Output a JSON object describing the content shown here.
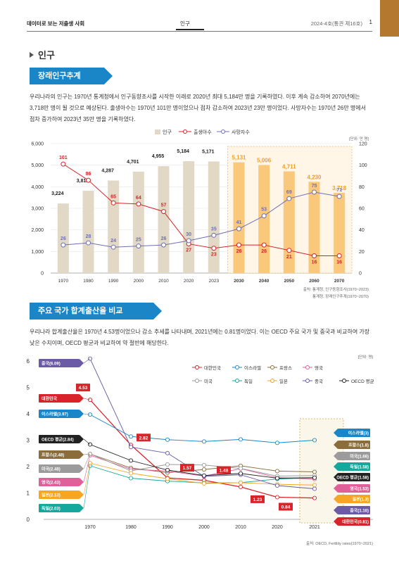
{
  "header": {
    "left": "데이터로 보는 저출생 사회",
    "center": "인구",
    "right": "2024-4호(통권 제16호)",
    "page": "1"
  },
  "section_title": "인구",
  "section1": {
    "heading": "장래인구추계",
    "paragraph": "우리나라의 인구는 1970년 통계청에서 인구동향조사를 시작한 이래로 2020년 최대 5,184만 명을 기록하였다. 이후 계속 감소하여 2070년에는 3,718만 명이 될 것으로 예상된다. 출생아수는 1970년 101만 명이었으나 점차 감소하여 2023년 23만 명이었다. 사망자수는 1970년 26만 명에서 점차 증가하여 2023년 35만 명을 기록하였다."
  },
  "section2": {
    "heading": "주요 국가 합계출산율 비교",
    "paragraph": "우리나라 합계출산율은 1970년 4.53명이었으나 감소 추세를 나타내며, 2021년에는 0.81명이었다. 이는 OECD 주요 국가 및 중국과 비교하여 가장 낮은 수치이며, OECD 평균과 비교하여 약 절반에 해당한다."
  },
  "chart_data": [
    {
      "type": "bar",
      "unit": "[단위: 만 명]",
      "legend": [
        "인구",
        "출생아수",
        "사망자수"
      ],
      "categories": [
        "1970",
        "1980",
        "1990",
        "2000",
        "2010",
        "2020",
        "2023",
        "2030",
        "2040",
        "2050",
        "2060",
        "2070"
      ],
      "projected_from": "2030",
      "ylim_left": [
        0,
        6000
      ],
      "yticks_left": [
        "0",
        "1,000",
        "2,000",
        "3,000",
        "4,000",
        "5,000",
        "6,000"
      ],
      "ylim_right": [
        0,
        120
      ],
      "yticks_right": [
        "0",
        "20",
        "40",
        "60",
        "80",
        "100",
        "120"
      ],
      "series": [
        {
          "name": "인구",
          "axis": "left",
          "values": [
            3224,
            3812,
            4287,
            4701,
            4955,
            5184,
            5171,
            5131,
            5006,
            4711,
            4230,
            3718
          ],
          "labels": [
            "3,224",
            "3,812",
            "4,287",
            "4,701",
            "4,955",
            "5,184",
            "5,171",
            "5,131",
            "5,006",
            "4,711",
            "4,230",
            "3,718"
          ]
        },
        {
          "name": "출생아수",
          "axis": "right",
          "values": [
            101,
            86,
            65,
            64,
            57,
            27,
            23,
            26,
            26,
            21,
            16,
            16
          ]
        },
        {
          "name": "사망자수",
          "axis": "right",
          "values": [
            26,
            28,
            24,
            25,
            26,
            30,
            35,
            41,
            53,
            69,
            75,
            71
          ]
        }
      ],
      "source": [
        "출처: 통계청, 인구동향조사(1970~2023)",
        "통계청, 장래인구추계(1970~2070)"
      ],
      "colors": {
        "bar": "#e1d9c5",
        "bar_projected": "#f9c87a",
        "birth": "#d8232a",
        "death": "#6f6fb5",
        "projected_label": "#f0a020"
      }
    },
    {
      "type": "line",
      "unit": "[단위: 명]",
      "x": [
        "1970",
        "1980",
        "1990",
        "2000",
        "2010",
        "2020",
        "2021"
      ],
      "ylim": [
        0,
        6
      ],
      "yticks": [
        "0",
        "1",
        "2",
        "3",
        "4",
        "5",
        "6"
      ],
      "series": [
        {
          "name": "대한민국",
          "color": "#d8232a",
          "start_label": "대한민국",
          "end_label": "대한민국(0.81)",
          "values": [
            4.53,
            2.82,
            1.57,
            1.48,
            1.23,
            0.84,
            0.81
          ]
        },
        {
          "name": "이스라엘",
          "color": "#1a86c8",
          "start_label": "이스라엘(3.97)",
          "end_label": "이스라엘(3)",
          "values": [
            3.97,
            3.14,
            3.02,
            2.95,
            3.03,
            2.9,
            3.0
          ]
        },
        {
          "name": "프랑스",
          "color": "#8a6d3b",
          "start_label": "프랑스(2.48)",
          "end_label": "프랑스(1.8)",
          "values": [
            2.48,
            1.95,
            1.77,
            1.89,
            2.03,
            1.83,
            1.8
          ]
        },
        {
          "name": "영국",
          "color": "#e0609a",
          "start_label": "영국(2.43)",
          "end_label": "영국(1.53)",
          "values": [
            2.43,
            1.9,
            1.83,
            1.64,
            1.92,
            1.58,
            1.53
          ]
        },
        {
          "name": "미국",
          "color": "#9b9b9b",
          "start_label": "미국(2.48)",
          "end_label": "미국(1.66)",
          "values": [
            2.48,
            1.84,
            2.08,
            2.06,
            1.93,
            1.64,
            1.66
          ]
        },
        {
          "name": "독일",
          "color": "#16a89c",
          "start_label": "독일(2.03)",
          "end_label": "독일(1.58)",
          "values": [
            2.03,
            1.56,
            1.45,
            1.38,
            1.39,
            1.53,
            1.58
          ]
        },
        {
          "name": "일본",
          "color": "#f5a623",
          "start_label": "일본(2.13)",
          "end_label": "일본(1.3)",
          "values": [
            2.13,
            1.75,
            1.54,
            1.36,
            1.39,
            1.33,
            1.3
          ]
        },
        {
          "name": "중국",
          "color": "#6b5aa5",
          "start_label": "중국(6.09)",
          "end_label": "중국(1.16)",
          "values": [
            6.09,
            2.74,
            2.51,
            1.63,
            1.69,
            1.28,
            1.16
          ]
        },
        {
          "name": "OECD 평균",
          "color": "#222222",
          "start_label": "OECD 평균(2.84)",
          "end_label": "OECD 평균(1.58)",
          "values": [
            2.84,
            2.23,
            1.87,
            1.66,
            1.74,
            1.56,
            1.58
          ]
        }
      ],
      "korea_labels": [
        "4.53",
        "2.82",
        "1.57",
        "1.48",
        "1.23",
        "0.84"
      ],
      "source": "출처: OECD, Fertility rates(1970~2021)"
    }
  ]
}
